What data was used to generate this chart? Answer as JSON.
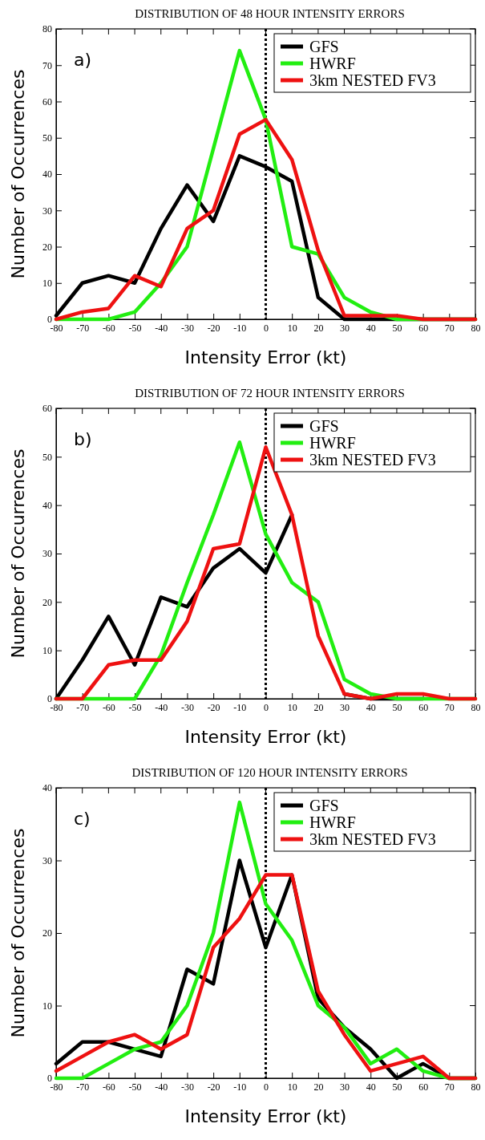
{
  "chart_data": [
    {
      "type": "line",
      "title": "DISTRIBUTION OF 48 HOUR INTENSITY ERRORS",
      "xlabel": "Intensity Error (kt)",
      "ylabel": "Number of Occurrences",
      "annotations": [
        "a)"
      ],
      "x": [
        -80,
        -70,
        -60,
        -50,
        -40,
        -30,
        -20,
        -10,
        0,
        10,
        20,
        30,
        40,
        50,
        60,
        70,
        80
      ],
      "xlim": [
        -80,
        80
      ],
      "xticks": [
        -80,
        -70,
        -60,
        -50,
        -40,
        -30,
        -20,
        -10,
        0,
        10,
        20,
        30,
        40,
        50,
        60,
        70,
        80
      ],
      "ylim": [
        0,
        80
      ],
      "yticks": [
        0,
        10,
        20,
        30,
        40,
        50,
        60,
        70,
        80
      ],
      "grid": false,
      "legend": "top right",
      "marker": "none",
      "line_style": "solid",
      "ref_lines": [
        {
          "axis": "x",
          "value": 0,
          "color": "#000000",
          "line_style": "dotted"
        }
      ],
      "series": [
        {
          "name": "GFS",
          "color": "#000000",
          "values": [
            1,
            10,
            12,
            10,
            25,
            37,
            27,
            45,
            42,
            38,
            6,
            0,
            0,
            0,
            0,
            0,
            0
          ]
        },
        {
          "name": "HWRF",
          "color": "#22ee11",
          "values": [
            0,
            0,
            0,
            2,
            10,
            20,
            47,
            74,
            55,
            20,
            18,
            6,
            2,
            0,
            0,
            0,
            0
          ]
        },
        {
          "name": "3km NESTED FV3",
          "color": "#ee1111",
          "values": [
            0,
            2,
            3,
            12,
            9,
            25,
            30,
            51,
            55,
            44,
            19,
            1,
            1,
            1,
            0,
            0,
            0
          ]
        }
      ]
    },
    {
      "type": "line",
      "title": "DISTRIBUTION OF 72 HOUR INTENSITY ERRORS",
      "xlabel": "Intensity Error (kt)",
      "ylabel": "Number of Occurrences",
      "annotations": [
        "b)"
      ],
      "x": [
        -80,
        -70,
        -60,
        -50,
        -40,
        -30,
        -20,
        -10,
        0,
        10,
        20,
        30,
        40,
        50,
        60,
        70,
        80
      ],
      "xlim": [
        -80,
        80
      ],
      "xticks": [
        -80,
        -70,
        -60,
        -50,
        -40,
        -30,
        -20,
        -10,
        0,
        10,
        20,
        30,
        40,
        50,
        60,
        70,
        80
      ],
      "ylim": [
        0,
        60
      ],
      "yticks": [
        0,
        10,
        20,
        30,
        40,
        50,
        60
      ],
      "grid": false,
      "legend": "top right",
      "marker": "none",
      "line_style": "solid",
      "ref_lines": [
        {
          "axis": "x",
          "value": 0,
          "color": "#000000",
          "line_style": "dotted"
        }
      ],
      "series": [
        {
          "name": "GFS",
          "color": "#000000",
          "values": [
            0,
            8,
            17,
            7,
            21,
            19,
            27,
            31,
            26,
            38,
            null,
            1,
            0,
            0,
            0,
            null,
            null
          ]
        },
        {
          "name": "HWRF",
          "color": "#22ee11",
          "values": [
            0,
            0,
            0,
            0,
            9,
            24,
            38,
            53,
            34,
            24,
            20,
            4,
            1,
            0,
            0,
            0,
            0
          ]
        },
        {
          "name": "3km NESTED FV3",
          "color": "#ee1111",
          "values": [
            0,
            0,
            7,
            8,
            8,
            16,
            31,
            32,
            52,
            38,
            13,
            1,
            0,
            1,
            1,
            0,
            0
          ]
        }
      ]
    },
    {
      "type": "line",
      "title": "DISTRIBUTION OF 120 HOUR INTENSITY ERRORS",
      "xlabel": "Intensity Error (kt)",
      "ylabel": "Number of Occurrences",
      "annotations": [
        "c)"
      ],
      "x": [
        -80,
        -70,
        -60,
        -50,
        -40,
        -30,
        -20,
        -10,
        0,
        10,
        20,
        30,
        40,
        50,
        60,
        70,
        80
      ],
      "xlim": [
        -80,
        80
      ],
      "xticks": [
        -80,
        -70,
        -60,
        -50,
        -40,
        -30,
        -20,
        -10,
        0,
        10,
        20,
        30,
        40,
        50,
        60,
        70,
        80
      ],
      "ylim": [
        0,
        40
      ],
      "yticks": [
        0,
        10,
        20,
        30,
        40
      ],
      "grid": false,
      "legend": "top right",
      "marker": "none",
      "line_style": "solid",
      "ref_lines": [
        {
          "axis": "x",
          "value": 0,
          "color": "#000000",
          "line_style": "dotted"
        }
      ],
      "series": [
        {
          "name": "GFS",
          "color": "#000000",
          "values": [
            2,
            5,
            5,
            4,
            3,
            15,
            13,
            30,
            18,
            28,
            11,
            7,
            4,
            0,
            2,
            0,
            0
          ]
        },
        {
          "name": "HWRF",
          "color": "#22ee11",
          "values": [
            0,
            0,
            2,
            4,
            5,
            10,
            20,
            38,
            24,
            19,
            10,
            7,
            2,
            4,
            1,
            0,
            0
          ]
        },
        {
          "name": "3km NESTED FV3",
          "color": "#ee1111",
          "values": [
            1,
            3,
            5,
            6,
            4,
            6,
            18,
            22,
            28,
            28,
            12,
            6,
            1,
            2,
            3,
            0,
            0
          ]
        }
      ]
    }
  ]
}
